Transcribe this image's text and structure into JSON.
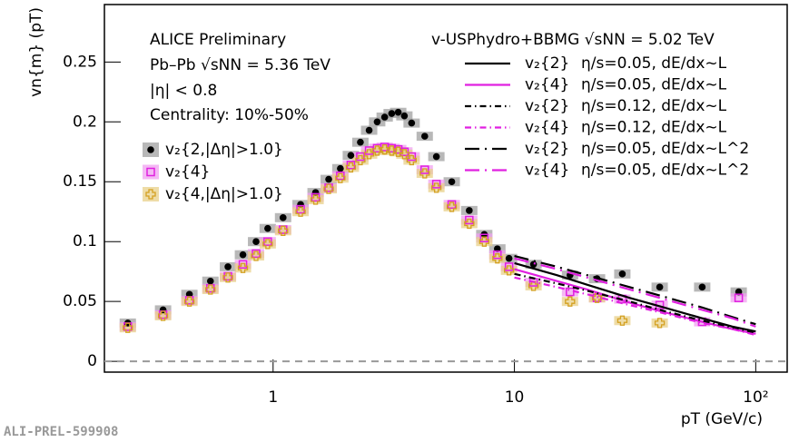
{
  "chart_data": {
    "type": "scatter",
    "log_x": true,
    "x_label": "pT (GeV/c)",
    "y_label": "vn{m} (pT)",
    "annotations": [
      "ALICE Preliminary",
      "Pb–Pb   √sNN = 5.36 TeV",
      "|η| < 0.8",
      "Centrality: 10%-50%"
    ],
    "model_title": "v-USPhydro+BBMG   √sNN = 5.02 TeV",
    "watermark": "ALI-PREL-599908",
    "xlim": [
      0.2,
      135
    ],
    "ylim": [
      -0.009,
      0.298
    ],
    "xticks": [
      1,
      10,
      {
        "value": 100,
        "label": "10²"
      }
    ],
    "yticks": [
      0,
      0.05,
      0.1,
      0.15,
      0.2,
      0.25
    ],
    "zero_line": 0,
    "x": [
      0.25,
      0.35,
      0.45,
      0.55,
      0.65,
      0.75,
      0.85,
      0.95,
      1.1,
      1.3,
      1.5,
      1.7,
      1.9,
      2.1,
      2.3,
      2.5,
      2.7,
      2.9,
      3.1,
      3.3,
      3.5,
      3.75,
      4.25,
      4.75,
      5.5,
      6.5,
      7.5,
      8.5,
      9.5,
      12,
      17,
      22,
      28,
      40,
      60,
      85
    ],
    "series": [
      {
        "name": "v₂{2,|Δη|>1.0}",
        "color": "#000000",
        "marker": "circle",
        "box_color": "#a0a0a0",
        "values": [
          0.032,
          0.043,
          0.056,
          0.067,
          0.079,
          0.089,
          0.1,
          0.111,
          0.12,
          0.131,
          0.141,
          0.152,
          0.161,
          0.172,
          0.183,
          0.193,
          0.2,
          0.204,
          0.207,
          0.208,
          0.205,
          0.199,
          0.188,
          0.171,
          0.15,
          0.126,
          0.106,
          0.094,
          0.086,
          0.081,
          0.072,
          0.069,
          0.073,
          0.062,
          0.062,
          0.058
        ]
      },
      {
        "name": "v₂{4}",
        "color": "#e020e0",
        "marker": "square",
        "box_color": "#f0a0f0",
        "values": [
          0.029,
          0.039,
          0.051,
          0.061,
          0.071,
          0.081,
          0.09,
          0.1,
          0.11,
          0.127,
          0.137,
          0.145,
          0.155,
          0.164,
          0.171,
          0.176,
          0.178,
          0.179,
          0.178,
          0.177,
          0.175,
          0.171,
          0.16,
          0.148,
          0.131,
          0.118,
          0.103,
          0.089,
          0.079,
          0.066,
          0.058,
          0.053,
          0.052,
          0.047,
          0.033,
          0.053
        ]
      },
      {
        "name": "v₂{4,|Δη|>1.0}",
        "color": "#d4a020",
        "marker": "cross",
        "box_color": "#e8d08a",
        "values": [
          0.028,
          0.038,
          0.05,
          0.06,
          0.07,
          0.078,
          0.088,
          0.098,
          0.109,
          0.125,
          0.135,
          0.144,
          0.153,
          0.162,
          0.168,
          0.173,
          0.176,
          0.177,
          0.176,
          0.175,
          0.173,
          0.168,
          0.157,
          0.145,
          0.129,
          0.115,
          0.1,
          0.086,
          0.076,
          0.063,
          0.05,
          0.053,
          0.034,
          0.032,
          null,
          null
        ]
      }
    ],
    "model_x": [
      10,
      15,
      20,
      30,
      40,
      60,
      80,
      100
    ],
    "models": [
      {
        "name": "v₂{2}",
        "label": "η/s=0.05, dE/dx~L",
        "color": "#000000",
        "dash": "solid",
        "values": [
          0.082,
          0.072,
          0.064,
          0.053,
          0.046,
          0.036,
          0.029,
          0.025
        ]
      },
      {
        "name": "v₂{4}",
        "label": "η/s=0.05, dE/dx~L",
        "color": "#e020e0",
        "dash": "solid",
        "values": [
          0.077,
          0.067,
          0.06,
          0.049,
          0.042,
          0.033,
          0.027,
          0.023
        ]
      },
      {
        "name": "v₂{2}",
        "label": "η/s=0.12, dE/dx~L",
        "color": "#000000",
        "dash": "dashdot",
        "values": [
          0.073,
          0.065,
          0.059,
          0.05,
          0.043,
          0.034,
          0.028,
          0.024
        ]
      },
      {
        "name": "v₂{4}",
        "label": "η/s=0.12, dE/dx~L",
        "color": "#e020e0",
        "dash": "dashdot",
        "values": [
          0.07,
          0.062,
          0.056,
          0.047,
          0.041,
          0.032,
          0.027,
          0.022
        ]
      },
      {
        "name": "v₂{2}",
        "label": "η/s=0.05, dE/dx~L^2",
        "color": "#000000",
        "dash": "longdash",
        "values": [
          0.088,
          0.079,
          0.072,
          0.062,
          0.055,
          0.045,
          0.037,
          0.031
        ]
      },
      {
        "name": "v₂{4}",
        "label": "η/s=0.05, dE/dx~L^2",
        "color": "#e020e0",
        "dash": "longdash",
        "values": [
          0.086,
          0.077,
          0.07,
          0.06,
          0.053,
          0.043,
          0.036,
          0.029
        ]
      }
    ]
  }
}
